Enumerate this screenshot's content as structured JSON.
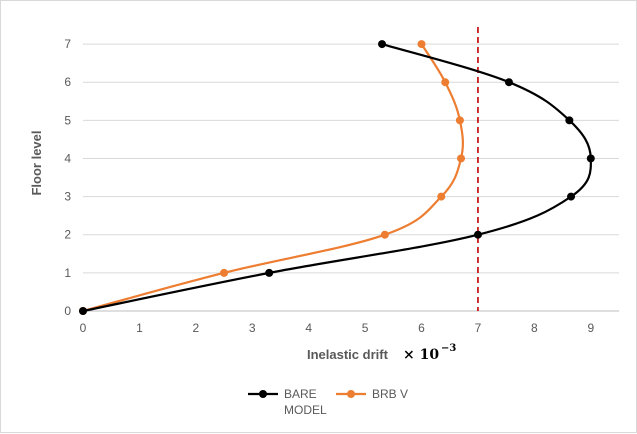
{
  "chart_data": {
    "type": "line",
    "title": "",
    "xlabel": "Inelastic drift",
    "xlabel_unit": "× 10",
    "xlabel_unit_exponent": "−3",
    "ylabel": "Floor level",
    "xlim": [
      0,
      9.5
    ],
    "ylim": [
      0,
      7.5
    ],
    "xticks": [
      "0",
      "1",
      "2",
      "3",
      "4",
      "5",
      "6",
      "7",
      "8",
      "9"
    ],
    "yticks": [
      "0",
      "1",
      "2",
      "3",
      "4",
      "5",
      "6",
      "7"
    ],
    "grid": "horizontal",
    "legend_position": "bottom",
    "series": [
      {
        "name": "BARE MODEL",
        "legend_lines": [
          "BARE",
          "MODEL"
        ],
        "color": "#000000",
        "points": [
          [
            0,
            0
          ],
          [
            3.3,
            1
          ],
          [
            7.0,
            2
          ],
          [
            8.65,
            3
          ],
          [
            9.0,
            4
          ],
          [
            8.62,
            5
          ],
          [
            7.55,
            6
          ],
          [
            5.3,
            7
          ]
        ]
      },
      {
        "name": "BRB V",
        "legend_lines": [
          "BRB V"
        ],
        "color": "#ed7d31",
        "points": [
          [
            0,
            0
          ],
          [
            2.5,
            1
          ],
          [
            5.35,
            2
          ],
          [
            6.35,
            3
          ],
          [
            6.7,
            4
          ],
          [
            6.68,
            5
          ],
          [
            6.42,
            6
          ],
          [
            6.0,
            7
          ]
        ]
      }
    ],
    "reference_line": {
      "x": 7,
      "color": "#c00000",
      "style": "dashed"
    }
  }
}
